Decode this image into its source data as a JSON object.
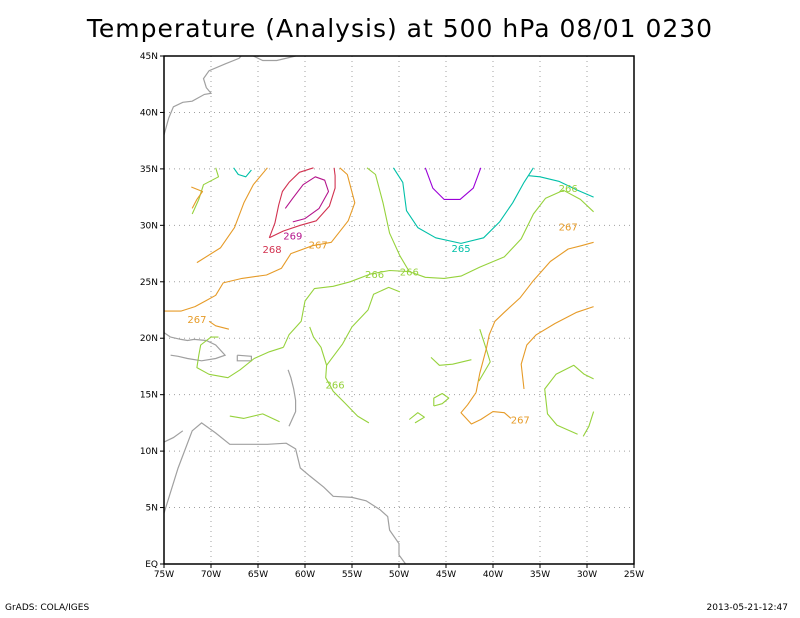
{
  "title": "Temperature (Analysis) at 500 hPa 08/01 0230",
  "footer": {
    "left": "GrADS: COLA/IGES",
    "right": "2013-05-21-12:47"
  },
  "axes": {
    "lon_ticks": [
      "75W",
      "70W",
      "65W",
      "60W",
      "55W",
      "50W",
      "45W",
      "40W",
      "35W",
      "30W",
      "25W"
    ],
    "lat_ticks": [
      "EQ",
      "5N",
      "10N",
      "15N",
      "20N",
      "25N",
      "30N",
      "35N",
      "40N",
      "45N"
    ]
  },
  "colors": {
    "coast": "#a0a0a0",
    "grid": "#a0a0a0",
    "c264": "#9b00d8",
    "c265": "#00c0a8",
    "c266": "#96d23c",
    "c267": "#e69b28",
    "c268": "#d23250",
    "c269": "#b4148c"
  },
  "contour_labels": [
    {
      "text": "269",
      "level": "269",
      "lon": -61.3,
      "lat": 29.1
    },
    {
      "text": "268",
      "level": "268",
      "lon": -63.5,
      "lat": 27.9
    },
    {
      "text": "267",
      "level": "267",
      "lon": -58.6,
      "lat": 28.3
    },
    {
      "text": "266",
      "level": "266",
      "lon": -52.6,
      "lat": 25.7
    },
    {
      "text": "266",
      "level": "266",
      "lon": -48.9,
      "lat": 25.9
    },
    {
      "text": "265",
      "level": "265",
      "lon": -43.4,
      "lat": 28.0
    },
    {
      "text": "266",
      "level": "266",
      "lon": -32.0,
      "lat": 33.3
    },
    {
      "text": "267",
      "level": "267",
      "lon": -32.0,
      "lat": 29.9
    },
    {
      "text": "267",
      "level": "267",
      "lon": -71.5,
      "lat": 21.7
    },
    {
      "text": "266",
      "level": "266",
      "lon": -56.8,
      "lat": 15.9
    },
    {
      "text": "267",
      "level": "267",
      "lon": -37.1,
      "lat": 12.8
    }
  ],
  "map_extent": {
    "lon": [
      -75,
      -25
    ],
    "lat": [
      0,
      45
    ]
  }
}
